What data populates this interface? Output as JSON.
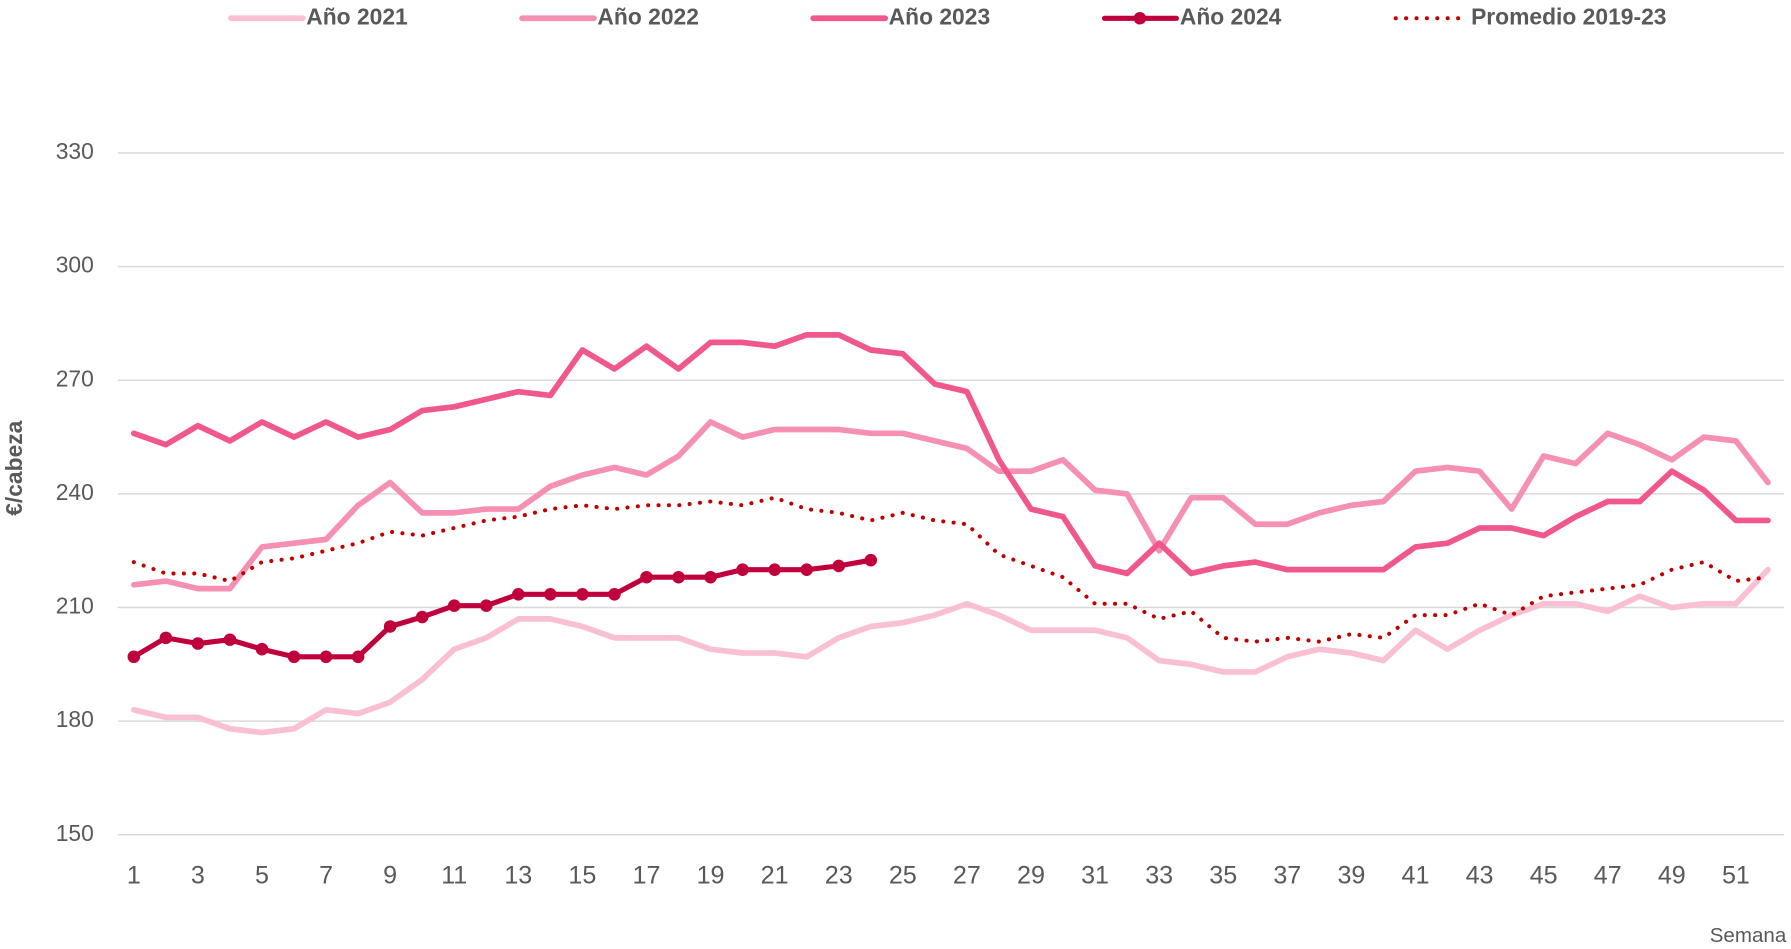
{
  "chart_data": {
    "type": "line",
    "y_label": "€/cabeza",
    "x_label": "Semana",
    "x": [
      1,
      2,
      3,
      4,
      5,
      6,
      7,
      8,
      9,
      10,
      11,
      12,
      13,
      14,
      15,
      16,
      17,
      18,
      19,
      20,
      21,
      22,
      23,
      24,
      25,
      26,
      27,
      28,
      29,
      30,
      31,
      32,
      33,
      34,
      35,
      36,
      37,
      38,
      39,
      40,
      41,
      42,
      43,
      44,
      45,
      46,
      47,
      48,
      49,
      50,
      51,
      52
    ],
    "xlim": [
      0.5,
      52.5
    ],
    "xticks": [
      1,
      3,
      5,
      7,
      9,
      11,
      13,
      15,
      17,
      19,
      21,
      23,
      25,
      27,
      29,
      31,
      33,
      35,
      37,
      39,
      41,
      43,
      45,
      47,
      49,
      51
    ],
    "ylim": [
      150,
      330
    ],
    "yticks": [
      150,
      180,
      210,
      240,
      270,
      300,
      330
    ],
    "grid": true,
    "legend": "top",
    "series": [
      {
        "name": "Año 2021",
        "color": "#f9c0d4",
        "width": 5,
        "values": [
          183,
          181,
          181,
          178,
          177,
          178,
          183,
          182,
          185,
          191,
          199,
          202,
          207,
          207,
          205,
          202,
          202,
          202,
          199,
          198,
          198,
          197,
          202,
          205,
          206,
          208,
          211,
          208,
          204,
          204,
          204,
          202,
          196,
          195,
          193,
          193,
          197,
          199,
          198,
          196,
          204,
          199,
          204,
          208,
          211,
          211,
          209,
          213,
          210,
          211,
          211,
          220
        ]
      },
      {
        "name": "Año 2022",
        "color": "#f590b3",
        "width": 5,
        "values": [
          216,
          217,
          215,
          215,
          226,
          227,
          228,
          237,
          243,
          235,
          235,
          236,
          236,
          242,
          245,
          247,
          245,
          250,
          259,
          255,
          257,
          257,
          257,
          256,
          256,
          254,
          252,
          246,
          246,
          249,
          241,
          240,
          225,
          239,
          239,
          232,
          232,
          235,
          237,
          238,
          246,
          247,
          246,
          236,
          250,
          248,
          256,
          253,
          249,
          255,
          254,
          243
        ]
      },
      {
        "name": "Año 2023",
        "color": "#f0588c",
        "width": 5,
        "values": [
          256,
          253,
          258,
          254,
          259,
          255,
          259,
          255,
          257,
          262,
          263,
          265,
          267,
          266,
          278,
          273,
          279,
          273,
          280,
          280,
          279,
          282,
          282,
          278,
          277,
          269,
          267,
          249,
          236,
          234,
          221,
          219,
          227,
          219,
          221,
          222,
          220,
          220,
          220,
          220,
          226,
          227,
          231,
          231,
          229,
          234,
          238,
          238,
          246,
          241,
          233,
          233
        ]
      },
      {
        "name": "Año 2024",
        "color": "#c0003c",
        "width": 4.5,
        "marker": "circle",
        "values": [
          197,
          202,
          200.5,
          201.5,
          199,
          197,
          197,
          197,
          205,
          207.5,
          210.5,
          210.5,
          213.5,
          213.5,
          213.5,
          213.5,
          218,
          218,
          218,
          220,
          220,
          220,
          221,
          222.5,
          null,
          null,
          null,
          null,
          null,
          null,
          null,
          null,
          null,
          null,
          null,
          null,
          null,
          null,
          null,
          null,
          null,
          null,
          null,
          null,
          null,
          null,
          null,
          null,
          null,
          null,
          null,
          null
        ]
      },
      {
        "name": "Promedio 2019-23",
        "color": "#c00000",
        "width": 3.5,
        "dash": "dotted",
        "values": [
          222,
          219,
          219,
          217,
          222,
          223,
          225,
          227,
          230,
          229,
          231,
          233,
          234,
          236,
          237,
          236,
          237,
          237,
          238,
          237,
          239,
          236,
          235,
          233,
          235,
          233,
          232,
          224,
          221,
          218,
          211,
          211,
          207,
          209,
          202,
          201,
          202,
          201,
          203,
          202,
          208,
          208,
          211,
          208,
          213,
          214,
          215,
          216,
          220,
          222,
          217,
          218
        ]
      }
    ]
  }
}
